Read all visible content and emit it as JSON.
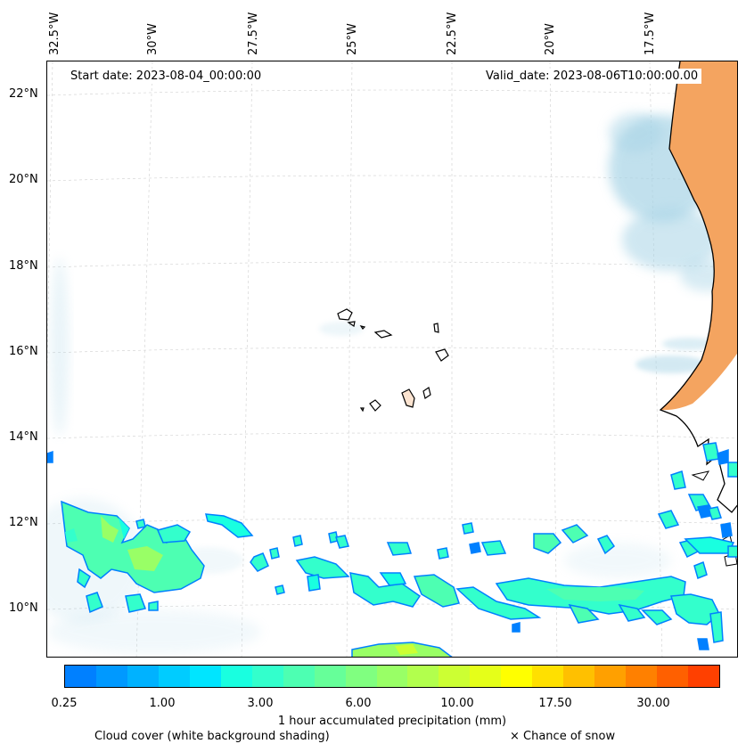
{
  "map": {
    "start_date": "Start date: 2023-08-04_00:00:00",
    "valid_date": "Valid_date: 2023-08-06T10:00:00.00",
    "lat_labels": [
      "22°N",
      "20°N",
      "18°N",
      "16°N",
      "14°N",
      "12°N",
      "10°N"
    ],
    "lon_labels": [
      "32.5°W",
      "30°W",
      "27.5°W",
      "25°W",
      "22.5°W",
      "20°W",
      "17.5°W"
    ],
    "land_color": "#f4a460",
    "cloud_color": "#a8d4e6"
  },
  "colorbar": {
    "colors": [
      "#0080ff",
      "#0099ff",
      "#00b2ff",
      "#00ccff",
      "#00e5ff",
      "#19ffe0",
      "#33ffcc",
      "#4dffb2",
      "#66ff99",
      "#80ff80",
      "#99ff66",
      "#b2ff4d",
      "#ccff33",
      "#e5ff19",
      "#ffff00",
      "#ffe000",
      "#ffc000",
      "#ffa000",
      "#ff8000",
      "#ff6000",
      "#ff4000"
    ],
    "tick_labels": [
      "0.25",
      "1.00",
      "3.00",
      "6.00",
      "10.00",
      "17.50",
      "30.00"
    ],
    "label": "1 hour accumulated precipitation (mm)"
  },
  "legend": {
    "cloud": "Cloud cover (white background shading)",
    "snow": "× Chance of snow"
  }
}
